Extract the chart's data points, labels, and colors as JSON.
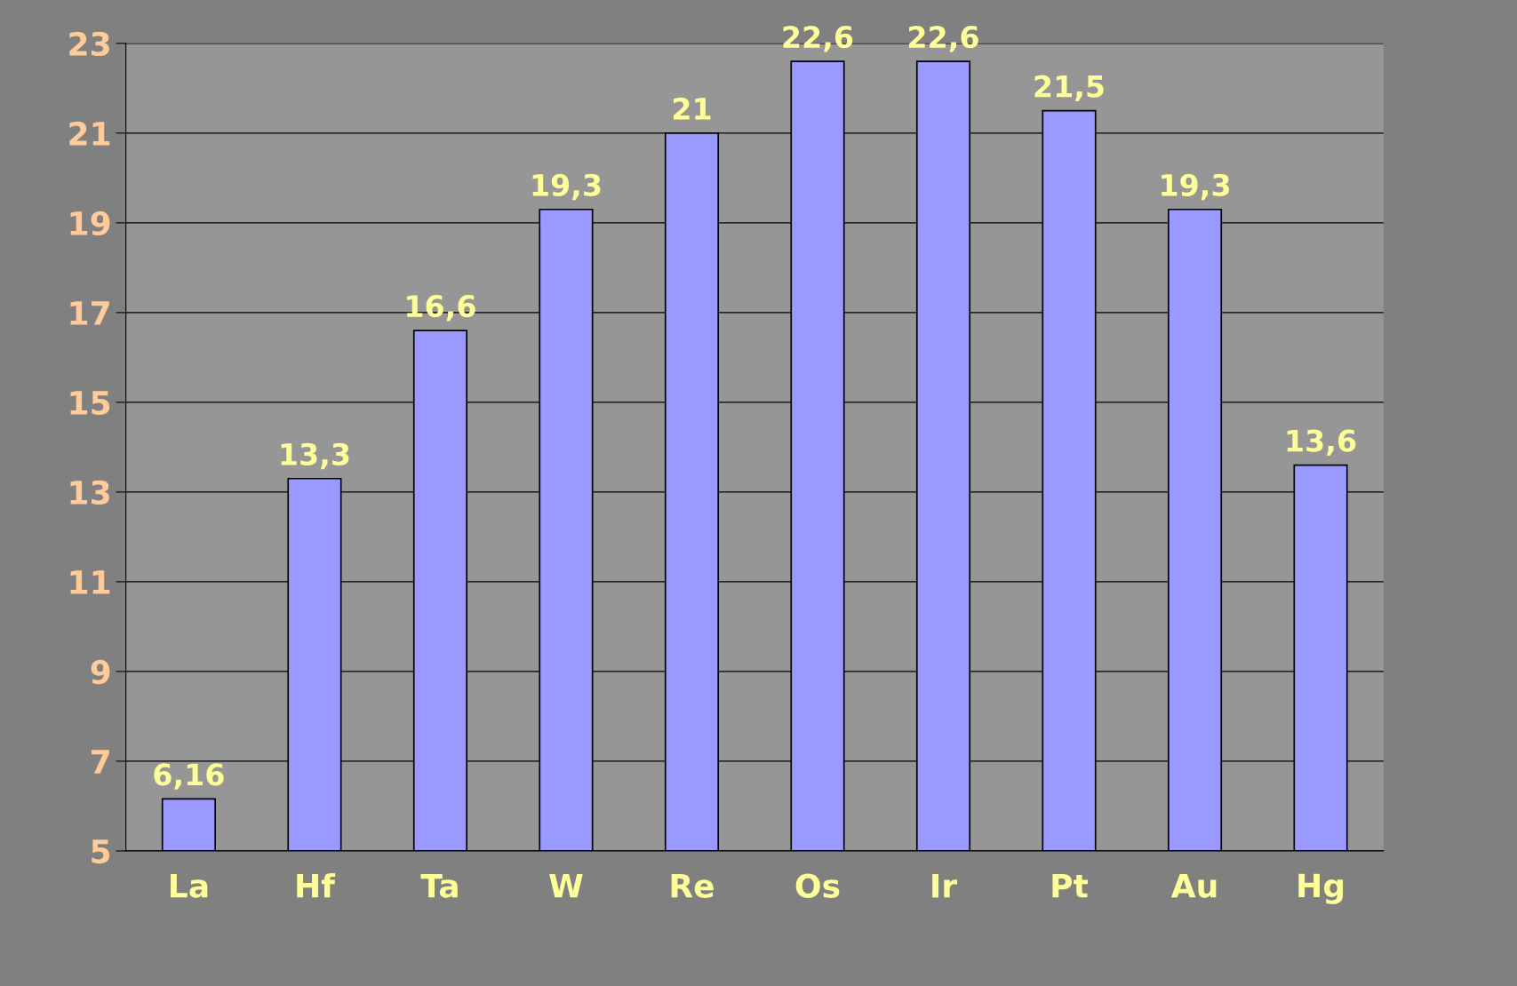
{
  "chart_data": {
    "type": "bar",
    "categories": [
      "La",
      "Hf",
      "Ta",
      "W",
      "Re",
      "Os",
      "Ir",
      "Pt",
      "Au",
      "Hg"
    ],
    "values": [
      6.16,
      13.3,
      16.6,
      19.3,
      21,
      22.6,
      22.6,
      21.5,
      19.3,
      13.6
    ],
    "value_labels": [
      "6,16",
      "13,3",
      "16,6",
      "19,3",
      "21",
      "22,6",
      "22,6",
      "21,5",
      "19,3",
      "13,6"
    ],
    "color": "#9999ff",
    "ylim": [
      5,
      23
    ],
    "yticks": [
      5,
      7,
      9,
      11,
      13,
      15,
      17,
      19,
      21,
      23
    ],
    "grid": "y",
    "legend": false
  }
}
